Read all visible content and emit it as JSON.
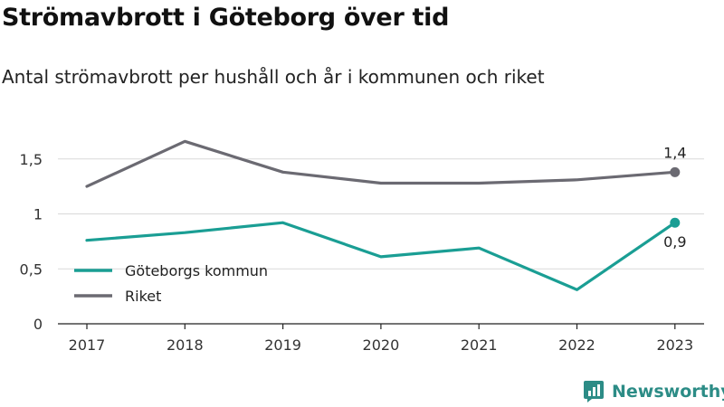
{
  "title": "Strömavbrott i Göteborg över tid",
  "subtitle": "Antal strömavbrott per hushåll och år i kommunen och riket",
  "brand": {
    "name": "Newsworthy",
    "icon": "newsworthy-logo-icon",
    "color": "#2c8c86"
  },
  "chart_data": {
    "type": "line",
    "x": [
      "2017",
      "2018",
      "2019",
      "2020",
      "2021",
      "2022",
      "2023"
    ],
    "y_ticks": [
      "0",
      "0,5",
      "1",
      "1,5"
    ],
    "ylim": [
      0,
      1.75
    ],
    "grid": true,
    "legend_position": "left",
    "series": [
      {
        "name": "Göteborgs kommun",
        "color": "#1a9e94",
        "values": [
          0.76,
          0.83,
          0.92,
          0.61,
          0.69,
          0.31,
          0.92
        ],
        "end_label": "0,9",
        "end_label_position": "below"
      },
      {
        "name": "Riket",
        "color": "#6b6a72",
        "values": [
          1.25,
          1.66,
          1.38,
          1.28,
          1.28,
          1.31,
          1.38
        ],
        "end_label": "1,4",
        "end_label_position": "above"
      }
    ]
  }
}
